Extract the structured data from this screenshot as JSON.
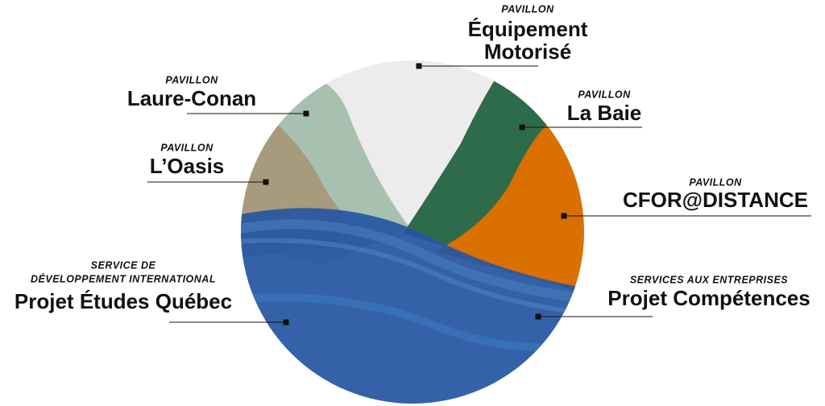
{
  "labels": [
    {
      "kicker": [
        "PAVILLON"
      ],
      "title": [
        "Équipement",
        "Motorisé"
      ]
    },
    {
      "kicker": [
        "PAVILLON"
      ],
      "title": [
        "Laure-Conan"
      ]
    },
    {
      "kicker": [
        "PAVILLON"
      ],
      "title": [
        "La Baie"
      ]
    },
    {
      "kicker": [
        "PAVILLON"
      ],
      "title": [
        "L’Oasis"
      ]
    },
    {
      "kicker": [
        "PAVILLON"
      ],
      "title": [
        "CFOR@DISTANCE"
      ]
    },
    {
      "kicker": [
        "SERVICES AUX ENTREPRISES"
      ],
      "title": [
        "Projet Compétences"
      ]
    },
    {
      "kicker": [
        "SERVICE DE",
        "DÉVELOPPEMENT INTERNATIONAL"
      ],
      "title": [
        "Projet Études Québec"
      ]
    }
  ]
}
